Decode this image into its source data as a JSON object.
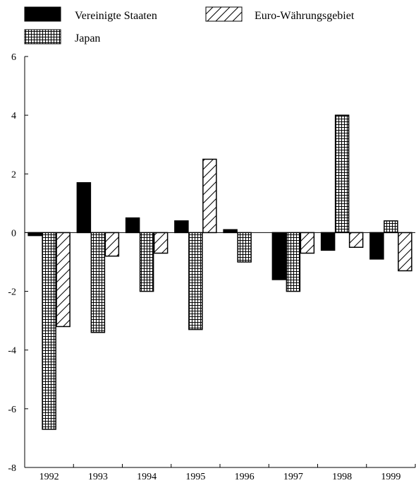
{
  "chart_data": {
    "type": "bar",
    "title": "",
    "xlabel": "",
    "ylabel": "",
    "categories": [
      "1992",
      "1993",
      "1994",
      "1995",
      "1996",
      "1997",
      "1998",
      "1999"
    ],
    "ylim": [
      -8,
      6
    ],
    "yticks": [
      6,
      4,
      2,
      0,
      -2,
      -4,
      -6,
      -8
    ],
    "ytick_labels": [
      "6",
      "4",
      "2",
      "0",
      "-2",
      "-4",
      "-6",
      "-8"
    ],
    "grid": false,
    "legend_position": "top",
    "series": [
      {
        "name": "Vereinigte Staaten",
        "values": [
          -0.1,
          1.7,
          0.5,
          0.4,
          0.1,
          -1.6,
          -0.6,
          -0.9
        ],
        "fill": "solid",
        "color": "#000000"
      },
      {
        "name": "Japan",
        "values": [
          -6.7,
          -3.4,
          -2.0,
          -3.3,
          -1.0,
          -2.0,
          4.0,
          0.4
        ],
        "fill": "crosshatch",
        "color": "#000000"
      },
      {
        "name": "Euro-Währungsgebiet",
        "values": [
          -3.2,
          -0.8,
          -0.7,
          2.5,
          0.0,
          -0.7,
          -0.5,
          -1.3
        ],
        "fill": "diagonal",
        "color": "#000000"
      }
    ]
  }
}
